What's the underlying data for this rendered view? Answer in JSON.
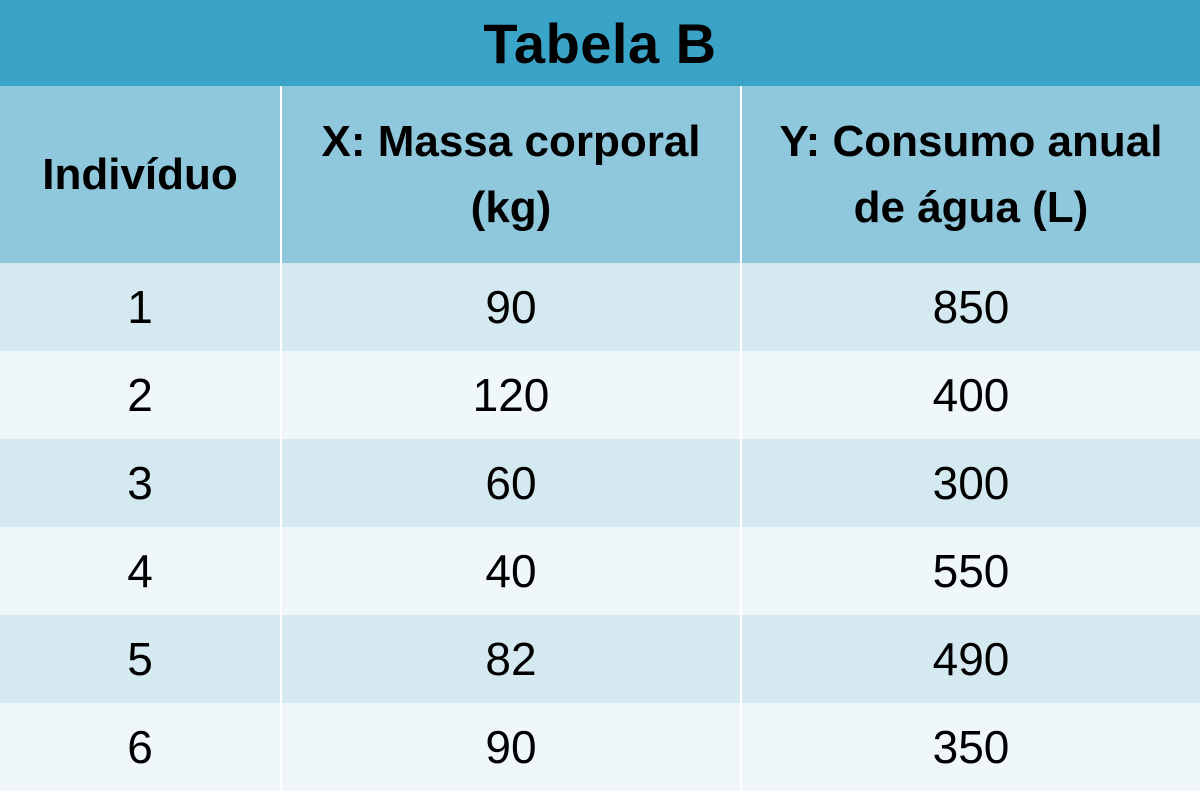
{
  "title": "Tabela B",
  "headers": {
    "col1": "Indivíduo",
    "col2_line1": "X: Massa corporal",
    "col2_line2": "(kg)",
    "col3_line1": "Y: Consumo anual",
    "col3_line2": "de água (L)"
  },
  "rows": [
    {
      "individuo": "1",
      "massa": "90",
      "consumo": "850"
    },
    {
      "individuo": "2",
      "massa": "120",
      "consumo": "400"
    },
    {
      "individuo": "3",
      "massa": "60",
      "consumo": "300"
    },
    {
      "individuo": "4",
      "massa": "40",
      "consumo": "550"
    },
    {
      "individuo": "5",
      "massa": "82",
      "consumo": "490"
    },
    {
      "individuo": "6",
      "massa": "90",
      "consumo": "350"
    }
  ],
  "colors": {
    "title_bg": "#3aa3c8",
    "header_bg": "#8fc8dc",
    "row_odd_bg": "#d4e9f0",
    "row_even_bg": "#eff7fa"
  }
}
